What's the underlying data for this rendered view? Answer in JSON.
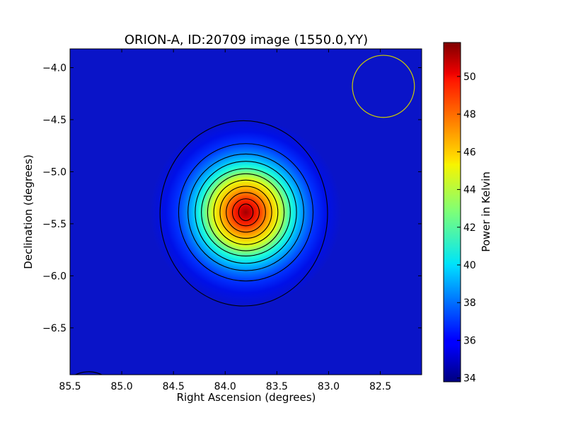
{
  "chart_data": {
    "type": "heatmap",
    "title": "ORION-A, ID:20709 image (1550.0,YY)",
    "xlabel": "Right Ascension (degrees)",
    "ylabel": "Declination (degrees)",
    "colorbar_label": "Power in Kelvin",
    "colormap": "jet",
    "x_axis_reversed": true,
    "xlim": [
      85.5,
      82.1
    ],
    "ylim": [
      -6.95,
      -3.82
    ],
    "x_ticks": [
      {
        "value": 85.5,
        "label": "85.5"
      },
      {
        "value": 85.0,
        "label": "85.0"
      },
      {
        "value": 84.5,
        "label": "84.5"
      },
      {
        "value": 84.0,
        "label": "84.0"
      },
      {
        "value": 83.5,
        "label": "83.5"
      },
      {
        "value": 83.0,
        "label": "83.0"
      },
      {
        "value": 82.5,
        "label": "82.5"
      }
    ],
    "y_ticks": [
      {
        "value": -4.0,
        "label": "−4.0"
      },
      {
        "value": -4.5,
        "label": "−4.5"
      },
      {
        "value": -5.0,
        "label": "−5.0"
      },
      {
        "value": -5.5,
        "label": "−5.5"
      },
      {
        "value": -6.0,
        "label": "−6.0"
      },
      {
        "value": -6.5,
        "label": "−6.5"
      }
    ],
    "colorbar_range": [
      33.8,
      51.8
    ],
    "colorbar_ticks": [
      {
        "value": 34,
        "label": "34"
      },
      {
        "value": 36,
        "label": "36"
      },
      {
        "value": 38,
        "label": "38"
      },
      {
        "value": 40,
        "label": "40"
      },
      {
        "value": 42,
        "label": "42"
      },
      {
        "value": 44,
        "label": "44"
      },
      {
        "value": 46,
        "label": "46"
      },
      {
        "value": 48,
        "label": "48"
      },
      {
        "value": 50,
        "label": "50"
      }
    ],
    "source": {
      "ra": 83.8,
      "dec": -5.39,
      "peak_kelvin": 51.6,
      "background_kelvin": 34.6,
      "sigma_ra_deg": 0.28,
      "sigma_dec_deg": 0.27
    },
    "contours": [
      {
        "level": 35.0,
        "ra_center": 83.82,
        "dec_center": -5.4,
        "rx_deg": 0.81,
        "ry_deg": 0.89
      },
      {
        "level": 36.5,
        "ra_center": 83.8,
        "dec_center": -5.39,
        "rx_deg": 0.65,
        "ry_deg": 0.66
      },
      {
        "level": 38.0,
        "ra_center": 83.8,
        "dec_center": -5.39,
        "rx_deg": 0.56,
        "ry_deg": 0.56
      },
      {
        "level": 39.5,
        "ra_center": 83.8,
        "dec_center": -5.39,
        "rx_deg": 0.49,
        "ry_deg": 0.49
      },
      {
        "level": 41.0,
        "ra_center": 83.8,
        "dec_center": -5.39,
        "rx_deg": 0.43,
        "ry_deg": 0.42
      },
      {
        "level": 42.5,
        "ra_center": 83.8,
        "dec_center": -5.39,
        "rx_deg": 0.37,
        "ry_deg": 0.37
      },
      {
        "level": 44.0,
        "ra_center": 83.8,
        "dec_center": -5.39,
        "rx_deg": 0.31,
        "ry_deg": 0.31
      },
      {
        "level": 45.5,
        "ra_center": 83.8,
        "dec_center": -5.39,
        "rx_deg": 0.25,
        "ry_deg": 0.25
      },
      {
        "level": 47.0,
        "ra_center": 83.8,
        "dec_center": -5.39,
        "rx_deg": 0.19,
        "ry_deg": 0.19
      },
      {
        "level": 48.5,
        "ra_center": 83.8,
        "dec_center": -5.39,
        "rx_deg": 0.13,
        "ry_deg": 0.13
      },
      {
        "level": 50.0,
        "ra_center": 83.8,
        "dec_center": -5.39,
        "rx_deg": 0.07,
        "ry_deg": 0.08
      }
    ],
    "beam_circle": {
      "ra": 82.47,
      "dec": -4.18,
      "radius_deg": 0.3,
      "color": "#cccc00"
    },
    "corner_contour": {
      "ra": 85.32,
      "dec": -7.22,
      "radius_deg": 0.3
    },
    "grid": false
  }
}
